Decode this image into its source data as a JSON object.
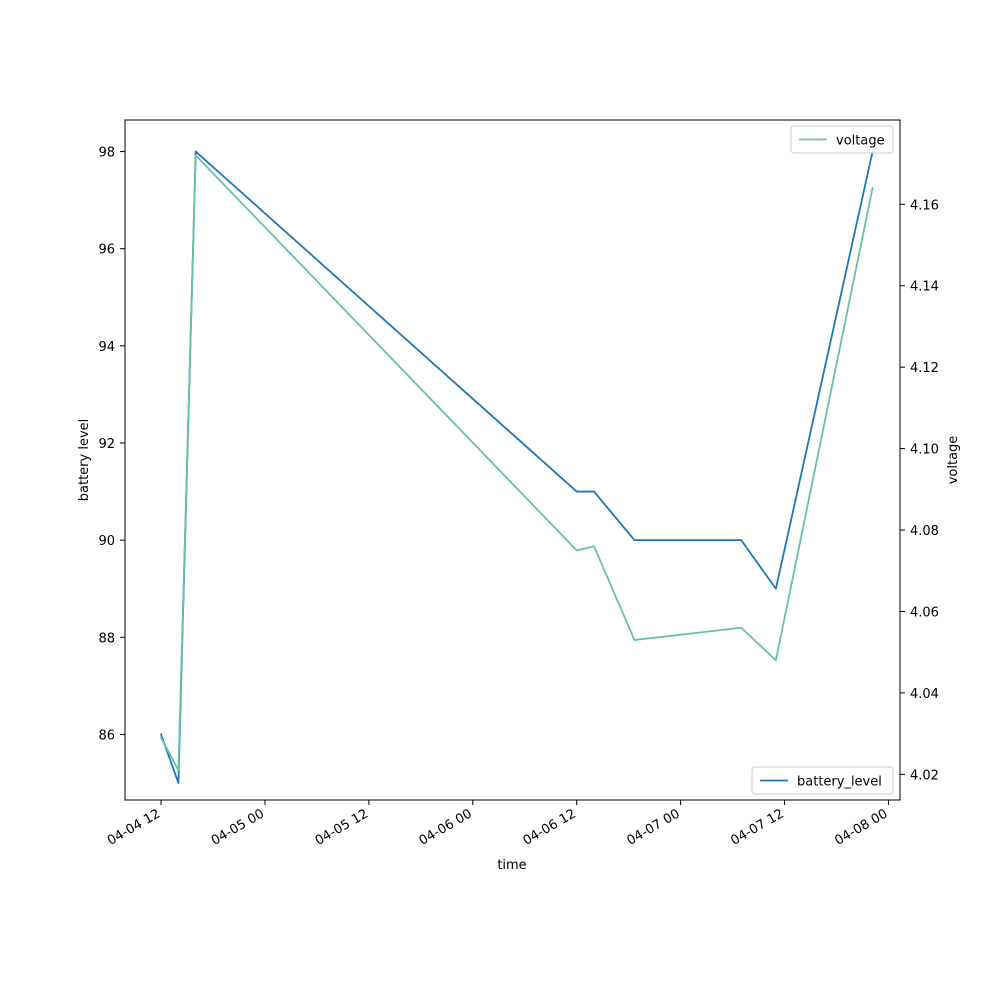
{
  "chart_data": {
    "type": "line",
    "xlabel": "time",
    "ylabel_left": "battery level",
    "ylabel_right": "voltage",
    "x_ticks": [
      "04-04 12",
      "04-05 00",
      "04-05 12",
      "04-06 00",
      "04-06 12",
      "04-07 00",
      "04-07 12",
      "04-08 00"
    ],
    "x_tick_times": [
      "2024-04-04T12:00",
      "2024-04-05T00:00",
      "2024-04-05T12:00",
      "2024-04-06T00:00",
      "2024-04-06T12:00",
      "2024-04-07T00:00",
      "2024-04-07T12:00",
      "2024-04-08T00:00"
    ],
    "xlim": [
      "2024-04-04T07:50",
      "2024-04-08T01:20"
    ],
    "left_ticks": [
      86,
      88,
      90,
      92,
      94,
      96,
      98
    ],
    "left_ylim": [
      84.65,
      98.65
    ],
    "right_ticks": [
      4.02,
      4.04,
      4.06,
      4.08,
      4.1,
      4.12,
      4.14,
      4.16
    ],
    "right_ylim": [
      4.0137,
      4.1807
    ],
    "grid": false,
    "series": [
      {
        "name": "battery_level",
        "axis": "left",
        "color": "#1f77b4",
        "legend_position": "lower-right",
        "points": [
          {
            "x": "2024-04-04T12:00",
            "y": 86
          },
          {
            "x": "2024-04-04T14:00",
            "y": 85
          },
          {
            "x": "2024-04-04T16:00",
            "y": 98
          },
          {
            "x": "2024-04-06T12:00",
            "y": 91
          },
          {
            "x": "2024-04-06T14:00",
            "y": 91
          },
          {
            "x": "2024-04-06T18:40",
            "y": 90
          },
          {
            "x": "2024-04-07T07:00",
            "y": 90
          },
          {
            "x": "2024-04-07T11:00",
            "y": 89
          },
          {
            "x": "2024-04-07T22:10",
            "y": 98
          }
        ]
      },
      {
        "name": "voltage",
        "axis": "right",
        "color": "#66c2a5",
        "legend_position": "upper-right",
        "points": [
          {
            "x": "2024-04-04T12:00",
            "y": 4.029
          },
          {
            "x": "2024-04-04T14:00",
            "y": 4.021
          },
          {
            "x": "2024-04-04T16:00",
            "y": 4.172
          },
          {
            "x": "2024-04-06T12:00",
            "y": 4.075
          },
          {
            "x": "2024-04-06T14:00",
            "y": 4.076
          },
          {
            "x": "2024-04-06T18:40",
            "y": 4.053
          },
          {
            "x": "2024-04-07T07:00",
            "y": 4.056
          },
          {
            "x": "2024-04-07T11:00",
            "y": 4.048
          },
          {
            "x": "2024-04-07T22:10",
            "y": 4.164
          }
        ]
      }
    ]
  }
}
